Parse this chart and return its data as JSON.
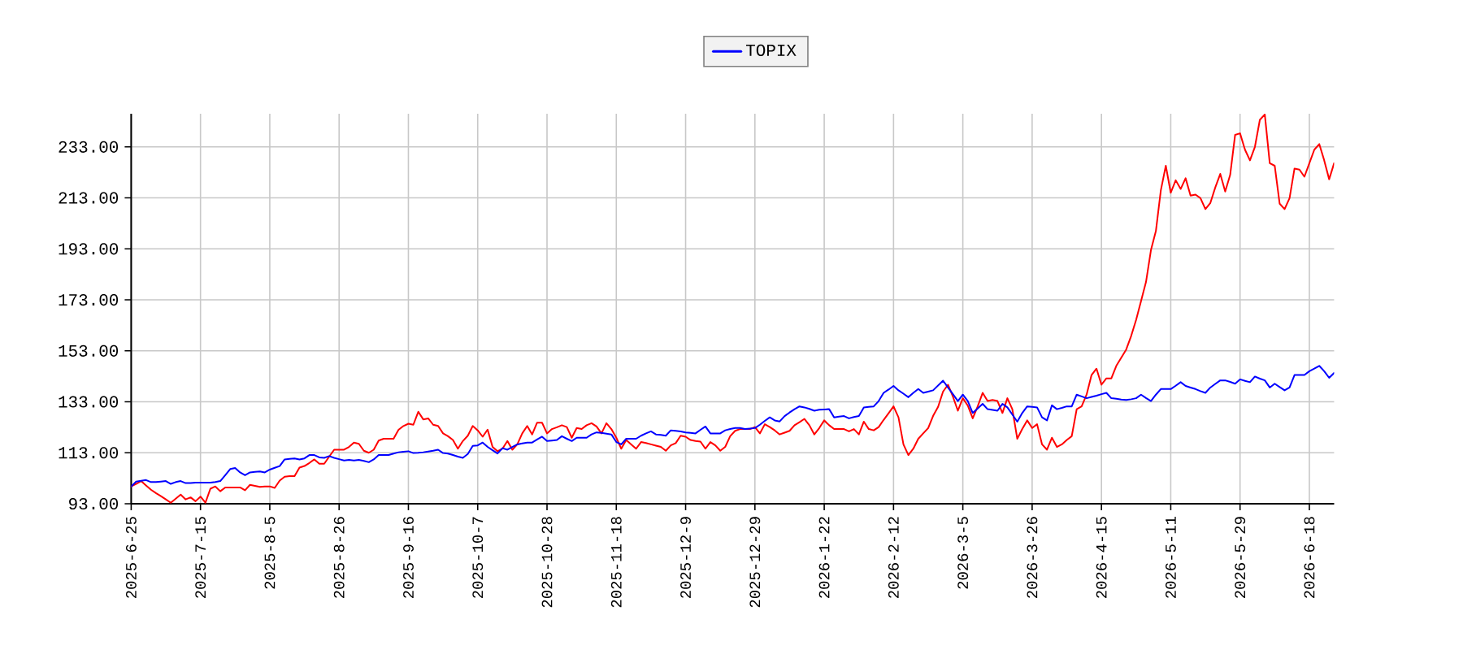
{
  "chart_data": {
    "type": "line",
    "categories": [
      "2025-6-25",
      null,
      null,
      null,
      null,
      null,
      null,
      null,
      null,
      null,
      null,
      null,
      null,
      null,
      "2025-7-15",
      null,
      null,
      null,
      null,
      null,
      null,
      null,
      null,
      null,
      null,
      null,
      null,
      null,
      "2025-8-5",
      null,
      null,
      null,
      null,
      null,
      null,
      null,
      null,
      null,
      null,
      null,
      null,
      null,
      "2025-8-26",
      null,
      null,
      null,
      null,
      null,
      null,
      null,
      null,
      null,
      null,
      null,
      null,
      null,
      "2025-9-16",
      null,
      null,
      null,
      null,
      null,
      null,
      null,
      null,
      null,
      null,
      null,
      null,
      null,
      "2025-10-7",
      null,
      null,
      null,
      null,
      null,
      null,
      null,
      null,
      null,
      null,
      null,
      null,
      null,
      "2025-10-28",
      null,
      null,
      null,
      null,
      null,
      null,
      null,
      null,
      null,
      null,
      null,
      null,
      null,
      "2025-11-18",
      null,
      null,
      null,
      null,
      null,
      null,
      null,
      null,
      null,
      null,
      null,
      null,
      null,
      "2025-12-9",
      null,
      null,
      null,
      null,
      null,
      null,
      null,
      null,
      null,
      null,
      null,
      null,
      null,
      "2025-12-29",
      null,
      null,
      null,
      null,
      null,
      null,
      null,
      null,
      null,
      null,
      null,
      null,
      null,
      "2026-1-22",
      null,
      null,
      null,
      null,
      null,
      null,
      null,
      null,
      null,
      null,
      null,
      null,
      null,
      "2026-2-12",
      null,
      null,
      null,
      null,
      null,
      null,
      null,
      null,
      null,
      null,
      null,
      null,
      null,
      "2026-3-5",
      null,
      null,
      null,
      null,
      null,
      null,
      null,
      null,
      null,
      null,
      null,
      null,
      null,
      "2026-3-26",
      null,
      null,
      null,
      null,
      null,
      null,
      null,
      null,
      null,
      null,
      null,
      null,
      null,
      "2026-4-15",
      null,
      null,
      null,
      null,
      null,
      null,
      null,
      null,
      null,
      null,
      null,
      null,
      null,
      "2026-5-11",
      null,
      null,
      null,
      null,
      null,
      null,
      null,
      null,
      null,
      null,
      null,
      null,
      null,
      "2026-5-29",
      null,
      null,
      null,
      null,
      null,
      null,
      null,
      null,
      null,
      null,
      null,
      null,
      null,
      "2026-6-18",
      null,
      null,
      null,
      null,
      null
    ],
    "ylim": [
      93,
      246
    ],
    "yticks": [
      {
        "value": 93,
        "label": "93.00"
      },
      {
        "value": 113,
        "label": "113.00"
      },
      {
        "value": 133,
        "label": "133.00"
      },
      {
        "value": 153,
        "label": "153.00"
      },
      {
        "value": 173,
        "label": "173.00"
      },
      {
        "value": 193,
        "label": "193.00"
      },
      {
        "value": 213,
        "label": "213.00"
      },
      {
        "value": 233,
        "label": "233.00"
      }
    ],
    "grid": true,
    "legend": "top",
    "series": [
      {
        "color": "#ff0000",
        "values": [
          99.8,
          100.8,
          101.9,
          100.2,
          98.5,
          97.2,
          96.0,
          94.7,
          93.4,
          95.0,
          96.6,
          94.7,
          95.5,
          94.0,
          95.8,
          93.4,
          98.9,
          99.8,
          97.9,
          99.4,
          99.4,
          99.4,
          99.4,
          98.3,
          100.4,
          100.0,
          99.6,
          99.8,
          99.8,
          99.2,
          102.1,
          103.6,
          103.8,
          103.8,
          107.2,
          107.8,
          109.0,
          110.4,
          108.7,
          108.7,
          111.5,
          114.2,
          114.2,
          114.2,
          115.3,
          117.0,
          116.5,
          113.8,
          113.0,
          114.2,
          117.8,
          118.5,
          118.5,
          118.5,
          122.0,
          123.5,
          124.4,
          124.0,
          129.1,
          126.1,
          126.5,
          124.0,
          123.5,
          120.6,
          119.5,
          118.0,
          114.6,
          117.6,
          119.7,
          123.5,
          121.8,
          119.3,
          122.1,
          115.3,
          113.6,
          114.6,
          117.6,
          114.2,
          116.3,
          120.6,
          123.5,
          120.2,
          124.8,
          124.8,
          120.6,
          122.3,
          123.0,
          123.8,
          123.1,
          118.9,
          122.7,
          122.3,
          123.8,
          124.6,
          123.3,
          120.6,
          124.6,
          122.3,
          118.9,
          114.6,
          118.0,
          116.3,
          114.6,
          117.2,
          116.8,
          116.3,
          115.8,
          115.3,
          113.8,
          115.9,
          116.8,
          119.7,
          119.3,
          118.0,
          117.6,
          117.4,
          114.6,
          117.2,
          115.9,
          113.8,
          115.3,
          119.5,
          121.6,
          122.3,
          122.3,
          122.3,
          123.1,
          120.6,
          124.2,
          123.1,
          121.8,
          120.2,
          120.9,
          121.6,
          123.8,
          125.0,
          126.3,
          123.8,
          120.2,
          122.7,
          125.7,
          123.8,
          122.3,
          122.3,
          122.3,
          121.4,
          122.3,
          120.2,
          125.2,
          122.3,
          121.8,
          123.1,
          125.9,
          128.5,
          131.2,
          126.9,
          116.3,
          112.1,
          114.6,
          118.5,
          120.6,
          122.7,
          127.5,
          131.0,
          137.0,
          139.7,
          135.0,
          129.5,
          134.4,
          131.5,
          126.5,
          131.2,
          136.5,
          133.3,
          133.7,
          133.3,
          128.6,
          134.4,
          130.1,
          118.5,
          122.3,
          125.7,
          122.7,
          124.2,
          116.3,
          114.2,
          118.9,
          115.3,
          116.3,
          118.0,
          119.5,
          130.1,
          131.2,
          135.8,
          143.5,
          146.0,
          139.7,
          142.2,
          142.2,
          147.1,
          150.3,
          153.5,
          158.8,
          165.1,
          172.5,
          180.0,
          192.5,
          200.0,
          216.0,
          225.6,
          215.0,
          219.9,
          216.5,
          220.7,
          213.9,
          214.3,
          212.9,
          208.6,
          211.0,
          217.1,
          222.4,
          215.5,
          222.0,
          237.7,
          238.3,
          231.9,
          227.7,
          233.0,
          243.6,
          245.7,
          226.6,
          225.6,
          210.7,
          208.6,
          212.9,
          224.5,
          224.1,
          221.3,
          226.6,
          231.9,
          234.1,
          227.7,
          220.3,
          226.6
        ]
      },
      {
        "name": "TOPIX",
        "color": "#0000ff",
        "values": [
          99.8,
          101.7,
          102.0,
          102.3,
          101.5,
          101.5,
          101.7,
          101.9,
          100.8,
          101.5,
          101.9,
          101.1,
          101.1,
          101.3,
          101.3,
          101.3,
          101.3,
          101.5,
          101.9,
          104.2,
          106.6,
          107.0,
          105.3,
          104.2,
          105.3,
          105.5,
          105.7,
          105.3,
          106.4,
          107.1,
          107.8,
          110.4,
          110.6,
          110.8,
          110.4,
          110.8,
          112.1,
          112.1,
          111.2,
          111.0,
          111.7,
          111.0,
          110.5,
          110.0,
          110.2,
          110.0,
          110.2,
          109.8,
          109.3,
          110.4,
          112.1,
          112.1,
          112.1,
          112.7,
          113.2,
          113.4,
          113.6,
          112.9,
          113.0,
          113.2,
          113.5,
          113.8,
          114.2,
          112.9,
          112.7,
          112.1,
          111.5,
          111.0,
          112.5,
          115.7,
          115.9,
          117.0,
          115.3,
          114.0,
          112.7,
          114.8,
          114.2,
          115.3,
          116.3,
          116.7,
          117.0,
          117.0,
          118.2,
          119.3,
          117.6,
          117.8,
          118.0,
          119.5,
          118.5,
          117.6,
          118.9,
          118.9,
          118.9,
          120.2,
          121.0,
          120.8,
          120.5,
          120.2,
          117.2,
          116.3,
          118.5,
          118.5,
          118.5,
          119.7,
          120.6,
          121.4,
          120.2,
          120.0,
          119.7,
          121.8,
          121.6,
          121.4,
          121.0,
          120.8,
          120.6,
          122.0,
          123.3,
          120.6,
          120.6,
          120.6,
          121.8,
          122.3,
          122.7,
          122.7,
          122.3,
          122.5,
          122.7,
          124.0,
          125.5,
          126.9,
          125.7,
          125.3,
          127.4,
          128.8,
          130.1,
          131.2,
          130.8,
          130.2,
          129.5,
          129.9,
          130.0,
          130.1,
          126.9,
          127.2,
          127.4,
          126.5,
          127.0,
          127.4,
          130.8,
          131.0,
          131.2,
          133.3,
          136.5,
          137.8,
          139.2,
          137.5,
          136.2,
          134.8,
          136.5,
          138.0,
          136.5,
          137.0,
          137.5,
          139.4,
          141.3,
          138.6,
          136.0,
          133.3,
          135.8,
          133.3,
          128.6,
          130.4,
          132.2,
          130.1,
          129.8,
          129.5,
          132.2,
          130.8,
          128.0,
          125.2,
          128.6,
          131.2,
          131.0,
          130.8,
          126.9,
          125.7,
          131.6,
          130.1,
          130.6,
          131.2,
          131.2,
          135.8,
          135.1,
          134.4,
          134.9,
          135.4,
          136.0,
          136.5,
          134.4,
          134.2,
          133.9,
          133.7,
          134.0,
          134.4,
          135.8,
          134.5,
          133.3,
          135.8,
          138.0,
          138.0,
          138.0,
          139.3,
          140.7,
          139.2,
          138.6,
          138.0,
          137.2,
          136.5,
          138.6,
          140.0,
          141.4,
          141.4,
          140.8,
          140.1,
          141.8,
          141.2,
          140.7,
          142.9,
          142.1,
          141.4,
          138.6,
          140.1,
          138.8,
          137.5,
          138.6,
          143.5,
          143.5,
          143.5,
          145.0,
          146.0,
          147.1,
          145.0,
          142.4,
          144.3
        ]
      }
    ]
  }
}
